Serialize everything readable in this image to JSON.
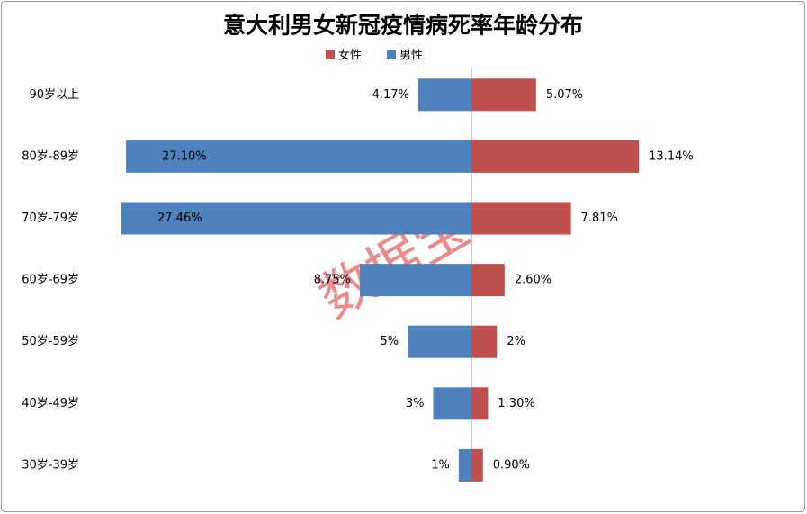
{
  "chart_data": {
    "type": "butterfly-bar",
    "title": "意大利男女新冠疫情病死率年龄分布",
    "watermark": "数据宝",
    "categories": [
      "90岁以上",
      "80岁-89岁",
      "70岁-79岁",
      "60岁-69岁",
      "50岁-59岁",
      "40岁-49岁",
      "30岁-39岁"
    ],
    "series": [
      {
        "name": "女性",
        "color": "#c0504d",
        "side": "right",
        "values": [
          5.07,
          13.14,
          7.81,
          2.6,
          2,
          1.3,
          0.9
        ],
        "value_labels": [
          "5.07%",
          "13.14%",
          "7.81%",
          "2.60%",
          "2%",
          "1.30%",
          "0.90%"
        ]
      },
      {
        "name": "男性",
        "color": "#4f81bd",
        "side": "left",
        "values": [
          4.17,
          27.1,
          27.46,
          8.75,
          5,
          3,
          1
        ],
        "value_labels": [
          "4.17%",
          "27.10%",
          "27.46%",
          "8.75%",
          "5%",
          "3%",
          "1%"
        ]
      }
    ],
    "legend": "top"
  }
}
